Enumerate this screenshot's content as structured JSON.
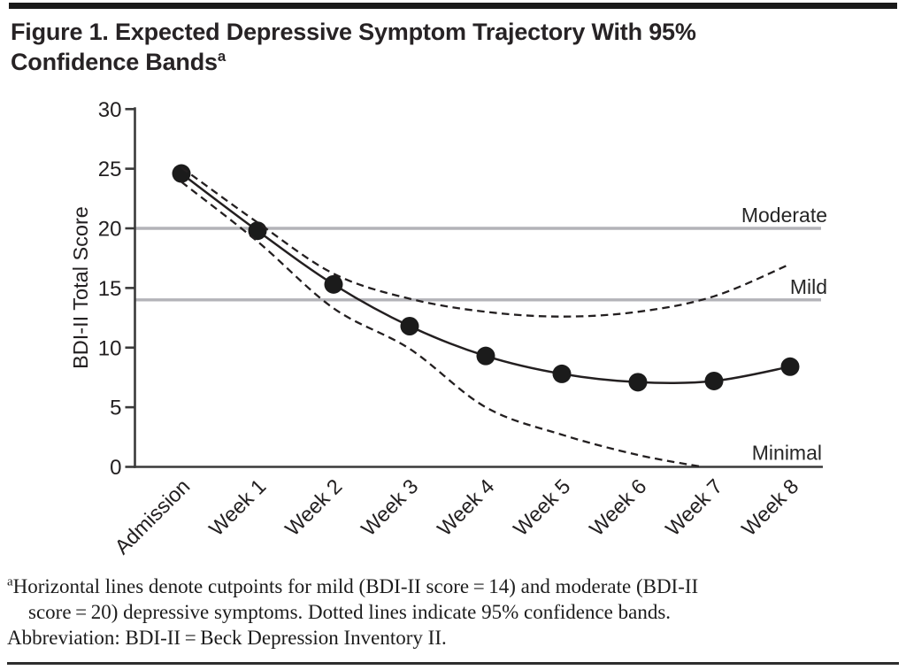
{
  "figure": {
    "title": "Figure 1. Expected Depressive Symptom Trajectory With 95% Confidence Bands",
    "title_superscript": "a"
  },
  "chart_data": {
    "type": "line",
    "title": "Expected Depressive Symptom Trajectory With 95% Confidence Bands",
    "xlabel": "",
    "ylabel": "BDI-II Total Score",
    "ylim": [
      0,
      30
    ],
    "yticks": [
      0,
      5,
      10,
      15,
      20,
      25,
      30
    ],
    "categories": [
      "Admission",
      "Week 1",
      "Week 2",
      "Week 3",
      "Week 4",
      "Week 5",
      "Week 6",
      "Week 7",
      "Week 8"
    ],
    "grid": false,
    "legend_position": "none",
    "series": [
      {
        "name": "Expected BDI-II total score",
        "line_style": "solid",
        "marker": "circle",
        "x": [
          0,
          1,
          2,
          3,
          4,
          5,
          6,
          7,
          8
        ],
        "values": [
          24.6,
          19.8,
          15.3,
          11.8,
          9.3,
          7.8,
          7.1,
          7.2,
          8.4
        ]
      },
      {
        "name": "Upper 95% confidence band",
        "line_style": "dashed",
        "marker": "none",
        "x": [
          0,
          1,
          2,
          3,
          4,
          5,
          6,
          7,
          8
        ],
        "values": [
          25.1,
          20.5,
          16.2,
          14.1,
          13.0,
          12.6,
          13.0,
          14.3,
          17.0
        ]
      },
      {
        "name": "Lower 95% confidence band",
        "line_style": "dashed",
        "marker": "none",
        "x": [
          0,
          1,
          2,
          3,
          4,
          5,
          6,
          6.85
        ],
        "values": [
          23.9,
          18.9,
          13.3,
          9.9,
          5.0,
          2.7,
          1.0,
          0.0
        ]
      }
    ],
    "cutpoint_lines": [
      {
        "label": "Moderate",
        "value": 20
      },
      {
        "label": "Mild",
        "value": 14
      }
    ],
    "region_labels": [
      {
        "label": "Minimal",
        "value": 0
      }
    ],
    "colors": {
      "line": "#231f20",
      "marker": "#1b1b1b",
      "cutpoint_line": "#b3b3b8",
      "axis": "#3a3a3a",
      "text": "#262626"
    }
  },
  "footnote": {
    "superscript": "a",
    "lines": [
      "Horizontal lines denote cutpoints for mild (BDI-II score = 14) and moderate (BDI-II",
      "score = 20) depressive symptoms. Dotted lines indicate 95% confidence bands.",
      "Abbreviation: BDI-II = Beck Depression Inventory II."
    ]
  }
}
